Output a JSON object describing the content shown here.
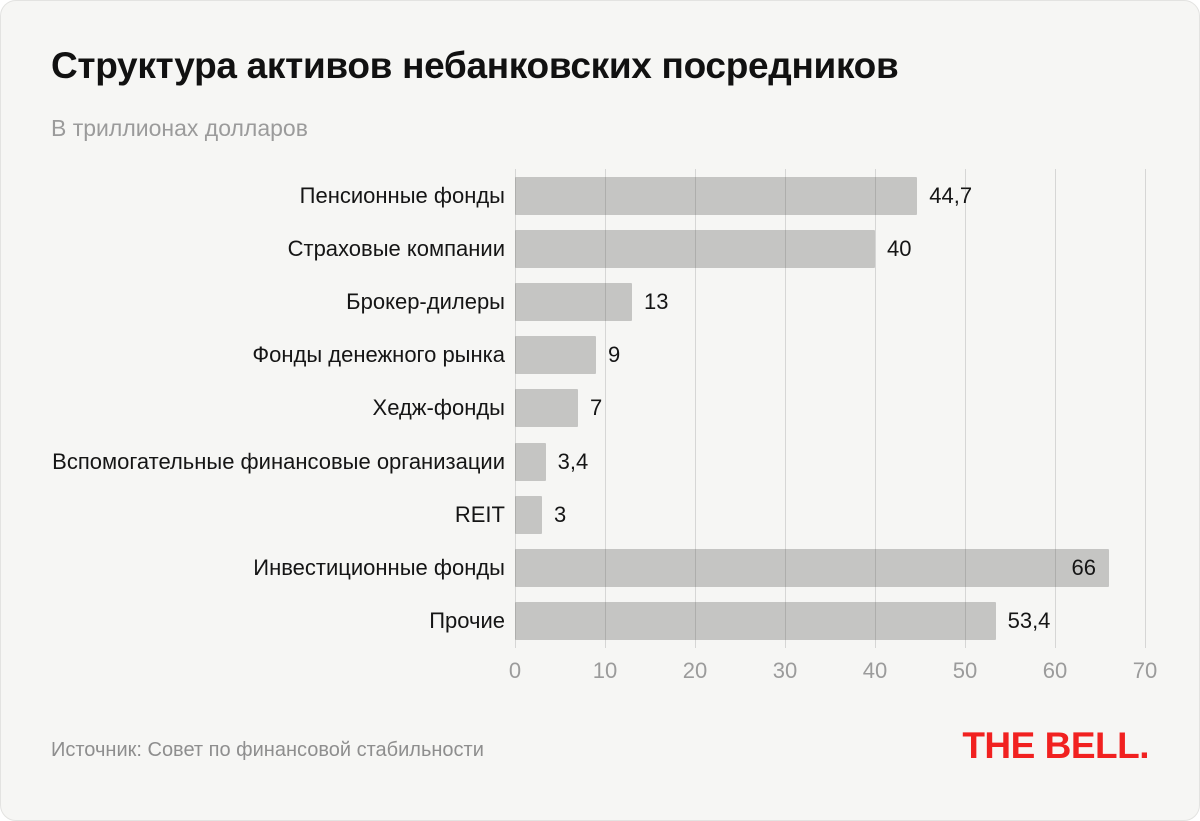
{
  "header": {
    "title": "Структура активов небанковских посредников",
    "subtitle": "В триллионах долларов"
  },
  "chart_data": {
    "type": "bar",
    "orientation": "horizontal",
    "title": "Структура активов небанковских посредников",
    "subtitle": "В триллионах долларов",
    "units": "триллионы долларов",
    "categories": [
      "Пенсионные фонды",
      "Страховые компании",
      "Брокер-дилеры",
      "Фонды денежного рынка",
      "Хедж-фонды",
      "Вспомогательные финансовые организации",
      "REIT",
      "Инвестиционные фонды",
      "Прочие"
    ],
    "values": [
      44.7,
      40,
      13,
      9,
      7,
      3.4,
      3,
      66,
      53.4
    ],
    "value_labels": [
      "44,7",
      "40",
      "13",
      "9",
      "7",
      "3,4",
      "3",
      "66",
      "53,4"
    ],
    "value_label_inside": [
      false,
      false,
      false,
      false,
      false,
      false,
      false,
      true,
      false
    ],
    "xlim": [
      0,
      70
    ],
    "xticks": [
      0,
      10,
      20,
      30,
      40,
      50,
      60,
      70
    ],
    "grid": "vertical",
    "legend": "none"
  },
  "footer": {
    "source": "Источник: Совет по финансовой стабильности",
    "logo_text": "THE BELL."
  },
  "colors": {
    "background": "#f6f6f4",
    "bar": "#c5c5c3",
    "gridline": "rgba(70,70,70,0.18)",
    "title_text": "#111111",
    "muted_text": "#9b9b9b",
    "source_text": "#8e8e8e",
    "logo_red": "#f12120"
  }
}
